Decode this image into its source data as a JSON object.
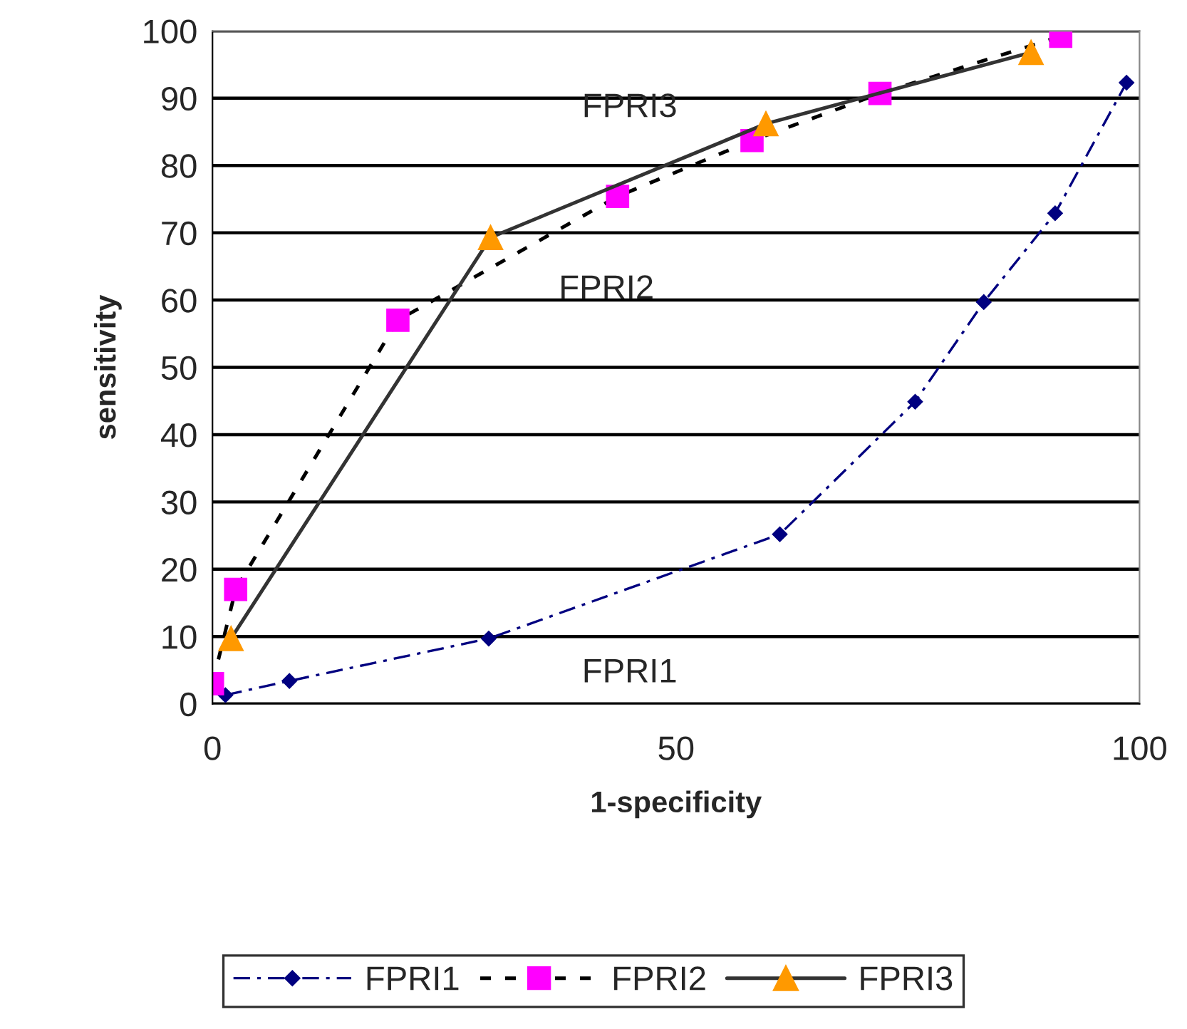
{
  "chart_data": {
    "type": "line",
    "xlabel": "1-specificity",
    "ylabel": "sensitivity",
    "xlim": [
      0,
      100
    ],
    "xticks": [
      0,
      50,
      100
    ],
    "ylim": [
      0,
      100
    ],
    "yticks": [
      0,
      10,
      20,
      30,
      40,
      50,
      60,
      70,
      80,
      90,
      100
    ],
    "grid": "y",
    "legend": "bottom",
    "series": [
      {
        "name": "FPRI1",
        "color": "#000080",
        "marker": "diamond",
        "line_style": "dashed",
        "x": [
          1.4,
          8.3,
          29.8,
          61.2,
          75.8,
          83.2,
          90.9,
          98.6
        ],
        "values": [
          1.3,
          3.4,
          9.7,
          25.2,
          44.9,
          59.7,
          72.9,
          92.3
        ]
      },
      {
        "name": "FPRI2",
        "color": "#ff00ff",
        "marker": "square",
        "line_style": "dotted",
        "x": [
          0,
          2.5,
          20,
          43.7,
          58.2,
          72,
          91.5
        ],
        "values": [
          3,
          17,
          57,
          75.4,
          83.7,
          90.7,
          99.2
        ]
      },
      {
        "name": "FPRI3",
        "color": "#ff9900",
        "marker": "triangle",
        "line_style": "solid",
        "x": [
          2,
          30,
          59.7,
          88.3
        ],
        "values": [
          9.7,
          69.3,
          86.2,
          96.8
        ]
      }
    ],
    "annotations": [
      "FPRI3",
      "FPRI2",
      "FPRI1"
    ]
  }
}
